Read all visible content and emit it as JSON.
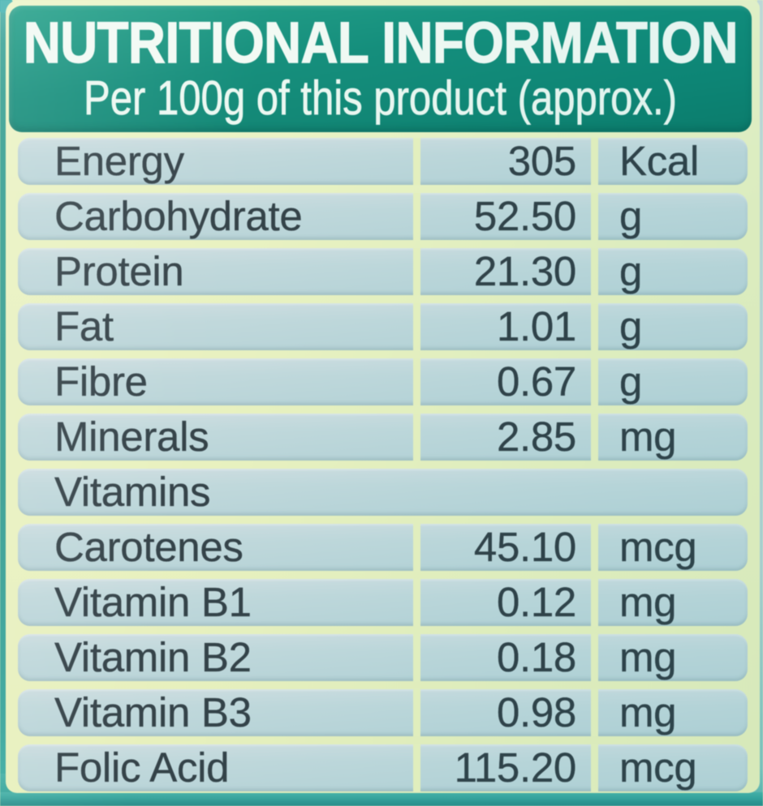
{
  "header": {
    "title": "NUTRITIONAL INFORMATION",
    "subtitle": "Per 100g of this product (approx.)"
  },
  "table": {
    "rows": [
      {
        "label": "Energy",
        "value": "305",
        "unit": "Kcal",
        "section": false
      },
      {
        "label": "Carbohydrate",
        "value": "52.50",
        "unit": "g",
        "section": false
      },
      {
        "label": "Protein",
        "value": "21.30",
        "unit": "g",
        "section": false
      },
      {
        "label": "Fat",
        "value": "1.01",
        "unit": "g",
        "section": false
      },
      {
        "label": "Fibre",
        "value": "0.67",
        "unit": "g",
        "section": false
      },
      {
        "label": "Minerals",
        "value": "2.85",
        "unit": "mg",
        "section": false
      },
      {
        "label": "Vitamins",
        "value": "",
        "unit": "",
        "section": true
      },
      {
        "label": "Carotenes",
        "value": "45.10",
        "unit": "mcg",
        "section": false
      },
      {
        "label": "Vitamin B1",
        "value": "0.12",
        "unit": "mg",
        "section": false
      },
      {
        "label": "Vitamin B2",
        "value": "0.18",
        "unit": "mg",
        "section": false
      },
      {
        "label": "Vitamin B3",
        "value": "0.98",
        "unit": "mg",
        "section": false
      },
      {
        "label": "Folic Acid",
        "value": "115.20",
        "unit": "mcg",
        "section": false
      }
    ]
  },
  "colors": {
    "header_teal": "#15907e",
    "label_background_yellow": "#eaf3c4",
    "row_background_blue": "#c2d9dc",
    "row_text": "#36444a",
    "header_text": "#f2faf4",
    "bottom_edge_teal": "#2d9c92",
    "left_edge_teal": "#2f9a8e",
    "right_edge_cyan": "#bcd6d6"
  }
}
